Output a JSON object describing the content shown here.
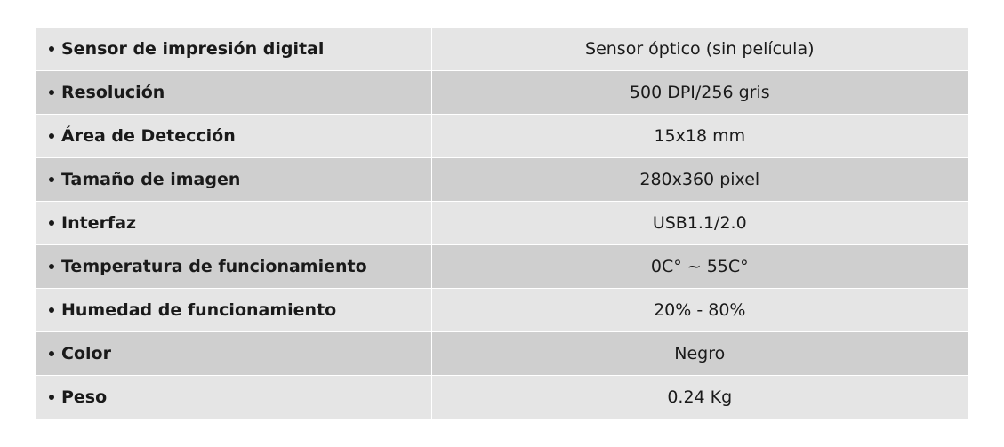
{
  "table": {
    "row_colors": [
      "#e5e5e5",
      "#cfcfcf"
    ],
    "border_color": "#ffffff",
    "text_color": "#1a1a1a",
    "label_fontsize": 19,
    "value_fontsize": 19,
    "rows": [
      {
        "label": "Sensor de impresión digital",
        "value": "Sensor óptico (sin película)"
      },
      {
        "label": "Resolución",
        "value": "500 DPI/256 gris"
      },
      {
        "label": "Área de Detección",
        "value": "15x18 mm"
      },
      {
        "label": "Tamaño de imagen",
        "value": "280x360 pixel"
      },
      {
        "label": "Interfaz",
        "value": "USB1.1/2.0"
      },
      {
        "label": "Temperatura de funcionamiento",
        "value": "0C° ~ 55C°"
      },
      {
        "label": "Humedad de funcionamiento",
        "value": "20% - 80%"
      },
      {
        "label": "Color",
        "value": "Negro"
      },
      {
        "label": "Peso",
        "value": "0.24 Kg"
      }
    ]
  }
}
